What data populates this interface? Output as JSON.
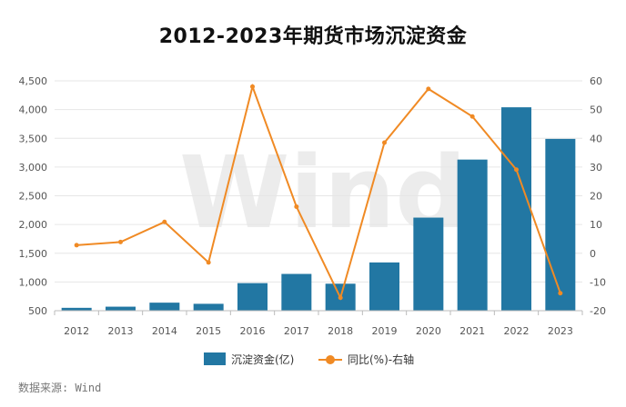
{
  "chart_data": {
    "type": "bar",
    "title": "2012-2023年期货市场沉淀资金",
    "categories": [
      "2012",
      "2013",
      "2014",
      "2015",
      "2016",
      "2017",
      "2018",
      "2019",
      "2020",
      "2021",
      "2022",
      "2023"
    ],
    "series": [
      {
        "name": "沉淀资金(亿)",
        "type": "bar",
        "axis": "left",
        "color": "#2277a3",
        "values": [
          550,
          570,
          640,
          620,
          980,
          1140,
          970,
          1340,
          2120,
          3130,
          4040,
          3490
        ]
      },
      {
        "name": "同比(%)-右轴",
        "type": "line",
        "axis": "right",
        "color": "#f08a24",
        "values": [
          2.8,
          3.9,
          10.9,
          -3.2,
          58.0,
          16.2,
          -15.5,
          38.5,
          57.2,
          47.6,
          29.1,
          -13.9
        ]
      }
    ],
    "y_left": {
      "range": [
        500,
        4500
      ],
      "ticks": [
        "500",
        "1,000",
        "1,500",
        "2,000",
        "2,500",
        "3,000",
        "3,500",
        "4,000",
        "4,500"
      ]
    },
    "y_right": {
      "range": [
        -20,
        60
      ],
      "ticks": [
        "-20",
        "-10",
        "0",
        "10",
        "20",
        "30",
        "40",
        "50",
        "60"
      ]
    },
    "grid": true,
    "legend_position": "bottom"
  },
  "watermark": "Wind",
  "source_note": "数据来源: Wind"
}
